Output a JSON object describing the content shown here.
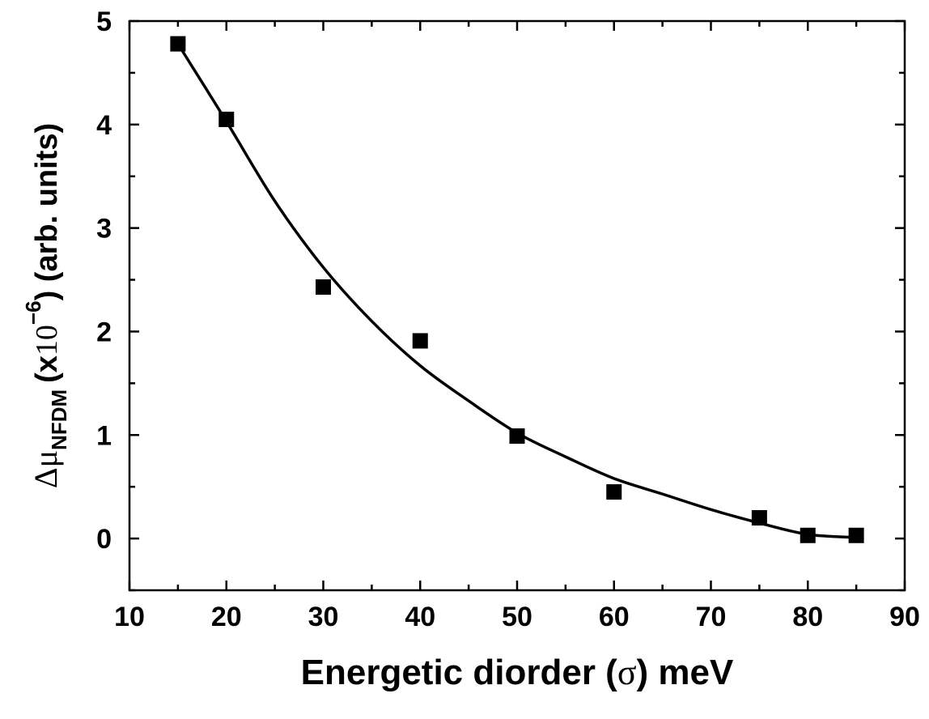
{
  "chart_data": {
    "type": "scatter",
    "title": "",
    "xlabel": {
      "prefix": "Energetic diorder (",
      "symbol": "σ",
      "suffix": ") meV"
    },
    "ylabel": {
      "delta": "Δμ",
      "subscript": "NFDM",
      "open": "(x",
      "base": "10",
      "exponent": "−6",
      "close": ") (arb. units)"
    },
    "xlim": [
      10,
      90
    ],
    "ylim": [
      -0.5,
      5.0
    ],
    "x_ticks": [
      {
        "value": 10,
        "label": "10"
      },
      {
        "value": 20,
        "label": "20"
      },
      {
        "value": 30,
        "label": "30"
      },
      {
        "value": 40,
        "label": "40"
      },
      {
        "value": 50,
        "label": "50"
      },
      {
        "value": 60,
        "label": "60"
      },
      {
        "value": 70,
        "label": "70"
      },
      {
        "value": 80,
        "label": "80"
      },
      {
        "value": 90,
        "label": "90"
      }
    ],
    "y_ticks": [
      {
        "value": 0,
        "label": "0"
      },
      {
        "value": 1,
        "label": "1"
      },
      {
        "value": 2,
        "label": "2"
      },
      {
        "value": 3,
        "label": "3"
      },
      {
        "value": 4,
        "label": "4"
      },
      {
        "value": 5,
        "label": "5"
      }
    ],
    "grid": false,
    "marker": "square",
    "marker_color": "#000000",
    "points": [
      {
        "x": 15,
        "y": 4.78
      },
      {
        "x": 20,
        "y": 4.05
      },
      {
        "x": 30,
        "y": 2.43
      },
      {
        "x": 40,
        "y": 1.91
      },
      {
        "x": 50,
        "y": 0.99
      },
      {
        "x": 60,
        "y": 0.45
      },
      {
        "x": 75,
        "y": 0.2
      },
      {
        "x": 80,
        "y": 0.03
      },
      {
        "x": 85,
        "y": 0.03
      }
    ],
    "fit_line": [
      {
        "x": 15,
        "y": 4.78
      },
      {
        "x": 20,
        "y": 4.03
      },
      {
        "x": 25,
        "y": 3.26
      },
      {
        "x": 30,
        "y": 2.62
      },
      {
        "x": 35,
        "y": 2.1
      },
      {
        "x": 40,
        "y": 1.67
      },
      {
        "x": 45,
        "y": 1.33
      },
      {
        "x": 50,
        "y": 1.02
      },
      {
        "x": 55,
        "y": 0.79
      },
      {
        "x": 60,
        "y": 0.58
      },
      {
        "x": 65,
        "y": 0.43
      },
      {
        "x": 70,
        "y": 0.28
      },
      {
        "x": 75,
        "y": 0.15
      },
      {
        "x": 80,
        "y": 0.04
      },
      {
        "x": 85,
        "y": 0.01
      }
    ],
    "line_color": "#000000"
  }
}
